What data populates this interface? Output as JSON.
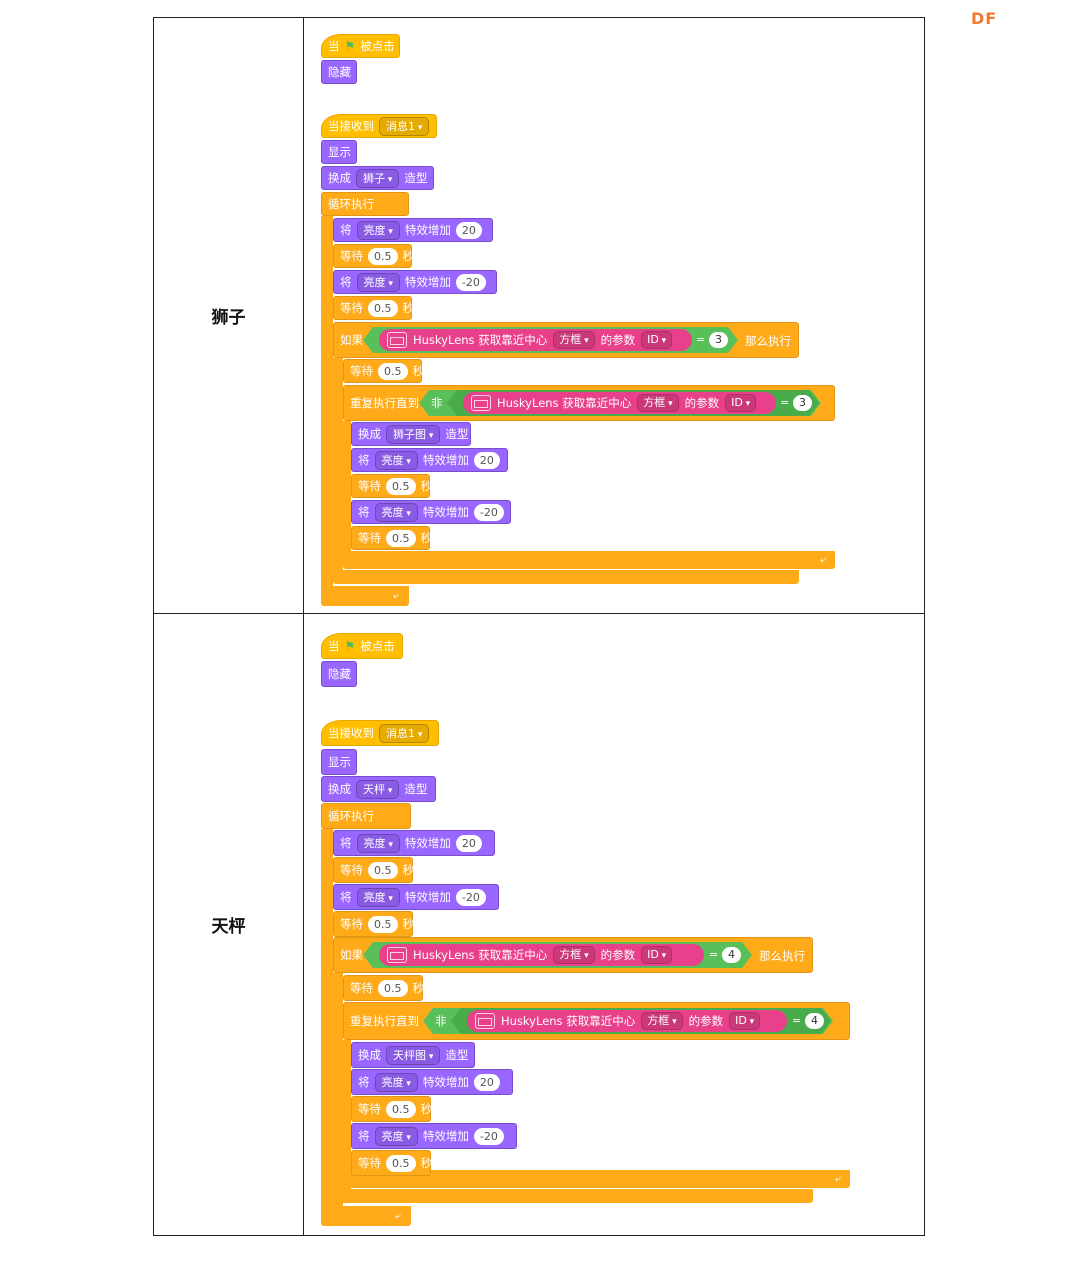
{
  "logo": "DF",
  "labels": {
    "text_shi": "当",
    "text_clicked": "被点击",
    "text_hide": "隐藏",
    "text_receive": "当接收到",
    "text_show": "显示",
    "text_switch": "换成",
    "text_costume": "造型",
    "text_forever": "循环执行",
    "text_set": "将",
    "text_effect": "亮度",
    "text_increase": "特效增加",
    "text_wait": "等待",
    "text_sec": "秒",
    "text_if": "如果",
    "text_then": "那么执行",
    "text_repeat_until": "重复执行直到",
    "text_not": "非",
    "text_husky": "HuskyLens 获取靠近中心",
    "text_box": "方框",
    "text_param": "的参数",
    "text_id": "ID",
    "text_eq": "="
  },
  "rows": [
    {
      "label": "狮子",
      "message": "消息1",
      "costume": "狮子",
      "costume2": "狮子图",
      "inc": "20",
      "dec": "-20",
      "wait": "0.5",
      "id_value": "3"
    },
    {
      "label": "天枰",
      "message": "消息1",
      "costume": "天枰",
      "costume2": "天枰图",
      "inc": "20",
      "dec": "-20",
      "wait": "0.5",
      "id_value": "4"
    }
  ],
  "colors": {
    "event": "#ffbf00",
    "looks": "#9966ff",
    "control": "#ffab19",
    "operator": "#59c059",
    "huskylens": "#e8408a"
  }
}
